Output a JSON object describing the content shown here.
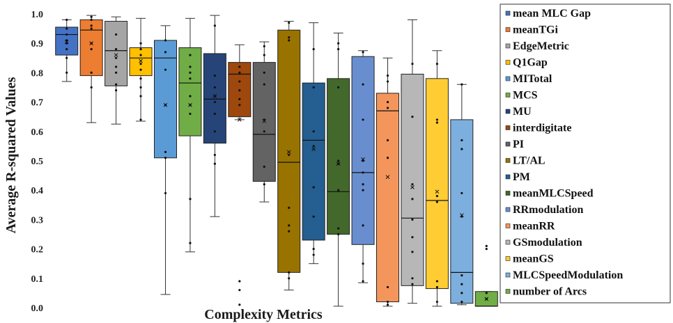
{
  "chart_data": {
    "type": "boxplot",
    "xlabel": "Complexity Metrics",
    "ylabel": "Average R-squared Values",
    "ylim": [
      0,
      1
    ],
    "yticks": [
      "0.0",
      "0.1",
      "0.2",
      "0.3",
      "0.4",
      "0.5",
      "0.6",
      "0.7",
      "0.8",
      "0.9",
      "1.0"
    ],
    "legend_position": "right",
    "series": [
      {
        "name": "mean MLC Gap",
        "color": "#4472c4",
        "min": 0.77,
        "q1": 0.86,
        "median": 0.93,
        "q3": 0.955,
        "max": 0.98,
        "mean": 0.905,
        "points": [
          0.98,
          0.95,
          0.93,
          0.91,
          0.9,
          0.88,
          0.85,
          0.8
        ]
      },
      {
        "name": "meanTGi",
        "color": "#ed7d31",
        "min": 0.63,
        "q1": 0.79,
        "median": 0.945,
        "q3": 0.98,
        "max": 0.995,
        "mean": 0.9,
        "points": [
          0.99,
          0.98,
          0.96,
          0.95,
          0.9,
          0.88,
          0.8,
          0.75
        ]
      },
      {
        "name": "EdgeMetric",
        "color": "#a5a5a5",
        "min": 0.625,
        "q1": 0.755,
        "median": 0.875,
        "q3": 0.975,
        "max": 0.99,
        "mean": 0.86,
        "points": [
          0.93,
          0.88,
          0.85,
          0.82,
          0.8,
          0.76,
          0.74
        ]
      },
      {
        "name": "Q1Gap",
        "color": "#ffc000",
        "min": 0.635,
        "q1": 0.79,
        "median": 0.85,
        "q3": 0.885,
        "max": 0.985,
        "mean": 0.84,
        "points": [
          0.9,
          0.88,
          0.86,
          0.83,
          0.81,
          0.78,
          0.75,
          0.72,
          0.64
        ]
      },
      {
        "name": "MITotal",
        "color": "#5b9bd5",
        "min": 0.045,
        "q1": 0.51,
        "median": 0.85,
        "q3": 0.91,
        "max": 0.96,
        "mean": 0.69,
        "points": [
          0.91,
          0.87,
          0.81,
          0.69,
          0.53,
          0.51,
          0.39
        ]
      },
      {
        "name": "MCS",
        "color": "#70ad47",
        "min": 0.19,
        "q1": 0.585,
        "median": 0.765,
        "q3": 0.885,
        "max": 0.985,
        "mean": 0.69,
        "points": [
          0.86,
          0.82,
          0.8,
          0.78,
          0.72,
          0.69,
          0.66,
          0.37,
          0.22
        ]
      },
      {
        "name": "MU",
        "color": "#264478",
        "min": 0.31,
        "q1": 0.56,
        "median": 0.71,
        "q3": 0.865,
        "max": 0.995,
        "mean": 0.72,
        "points": [
          0.96,
          0.79,
          0.75,
          0.72,
          0.7,
          0.66,
          0.6,
          0.52,
          0.49
        ]
      },
      {
        "name": "interdigitate",
        "color": "#9e480e",
        "min": 0.64,
        "q1": 0.65,
        "median": 0.795,
        "q3": 0.835,
        "max": 0.895,
        "mean": 0.64,
        "points": [
          0.82,
          0.8,
          0.77,
          0.74,
          0.71,
          0.69,
          0.09,
          0.06,
          0.01
        ]
      },
      {
        "name": "PI",
        "color": "#636363",
        "min": 0.36,
        "q1": 0.43,
        "median": 0.59,
        "q3": 0.835,
        "max": 0.905,
        "mean": 0.635,
        "points": [
          0.89,
          0.86,
          0.8,
          0.76,
          0.64,
          0.6,
          0.48,
          0.42
        ]
      },
      {
        "name": "LT/AL",
        "color": "#997300",
        "min": 0.06,
        "q1": 0.12,
        "median": 0.495,
        "q3": 0.945,
        "max": 0.975,
        "mean": 0.53,
        "points": [
          0.97,
          0.92,
          0.91,
          0.52,
          0.34,
          0.28,
          0.26,
          0.12,
          0.1
        ]
      },
      {
        "name": "PM",
        "color": "#255e91",
        "min": 0.15,
        "q1": 0.23,
        "median": 0.57,
        "q3": 0.765,
        "max": 0.97,
        "mean": 0.54,
        "points": [
          0.88,
          0.75,
          0.6,
          0.55,
          0.41,
          0.31,
          0.2,
          0.18
        ]
      },
      {
        "name": "meanMLCSpeed",
        "color": "#43682b",
        "min": 0.005,
        "q1": 0.25,
        "median": 0.395,
        "q3": 0.78,
        "max": 0.935,
        "mean": 0.49,
        "points": [
          0.9,
          0.88,
          0.75,
          0.5,
          0.49,
          0.4,
          0.27,
          0.25
        ]
      },
      {
        "name": "RRmodulation",
        "color": "#698ed0",
        "min": 0.085,
        "q1": 0.215,
        "median": 0.46,
        "q3": 0.855,
        "max": 0.875,
        "mean": 0.505,
        "points": [
          0.87,
          0.76,
          0.64,
          0.5,
          0.46,
          0.42,
          0.4,
          0.28,
          0.15,
          0.09
        ]
      },
      {
        "name": "meanRR",
        "color": "#f4965c",
        "min": 0.005,
        "q1": 0.02,
        "median": 0.67,
        "q3": 0.73,
        "max": 0.85,
        "mean": 0.445,
        "points": [
          0.79,
          0.77,
          0.7,
          0.68,
          0.57,
          0.51,
          0.07,
          0.02,
          0.01
        ]
      },
      {
        "name": "GSmodulation",
        "color": "#b7b7b7",
        "min": 0.015,
        "q1": 0.075,
        "median": 0.305,
        "q3": 0.795,
        "max": 0.98,
        "mean": 0.41,
        "points": [
          0.83,
          0.65,
          0.42,
          0.37,
          0.3,
          0.24,
          0.19,
          0.1,
          0.08
        ]
      },
      {
        "name": "meanGS",
        "color": "#ffcd33",
        "min": 0.005,
        "q1": 0.065,
        "median": 0.365,
        "q3": 0.78,
        "max": 0.875,
        "mean": 0.395,
        "points": [
          0.83,
          0.64,
          0.63,
          0.38,
          0.36,
          0.09,
          0.07,
          0.02
        ]
      },
      {
        "name": "MLCSpeedModulation",
        "color": "#7cafdd",
        "min": 0.01,
        "q1": 0.015,
        "median": 0.12,
        "q3": 0.64,
        "max": 0.76,
        "mean": 0.315,
        "points": [
          0.76,
          0.57,
          0.54,
          0.39,
          0.31,
          0.11,
          0.08,
          0.05,
          0.02
        ]
      },
      {
        "name": "number of Arcs",
        "color": "#70ad47",
        "min": 0.005,
        "q1": 0.005,
        "median": 0.005,
        "q3": 0.055,
        "max": 0.055,
        "mean": 0.03,
        "points": [
          0.21,
          0.2,
          0.05,
          0.03
        ]
      }
    ]
  }
}
